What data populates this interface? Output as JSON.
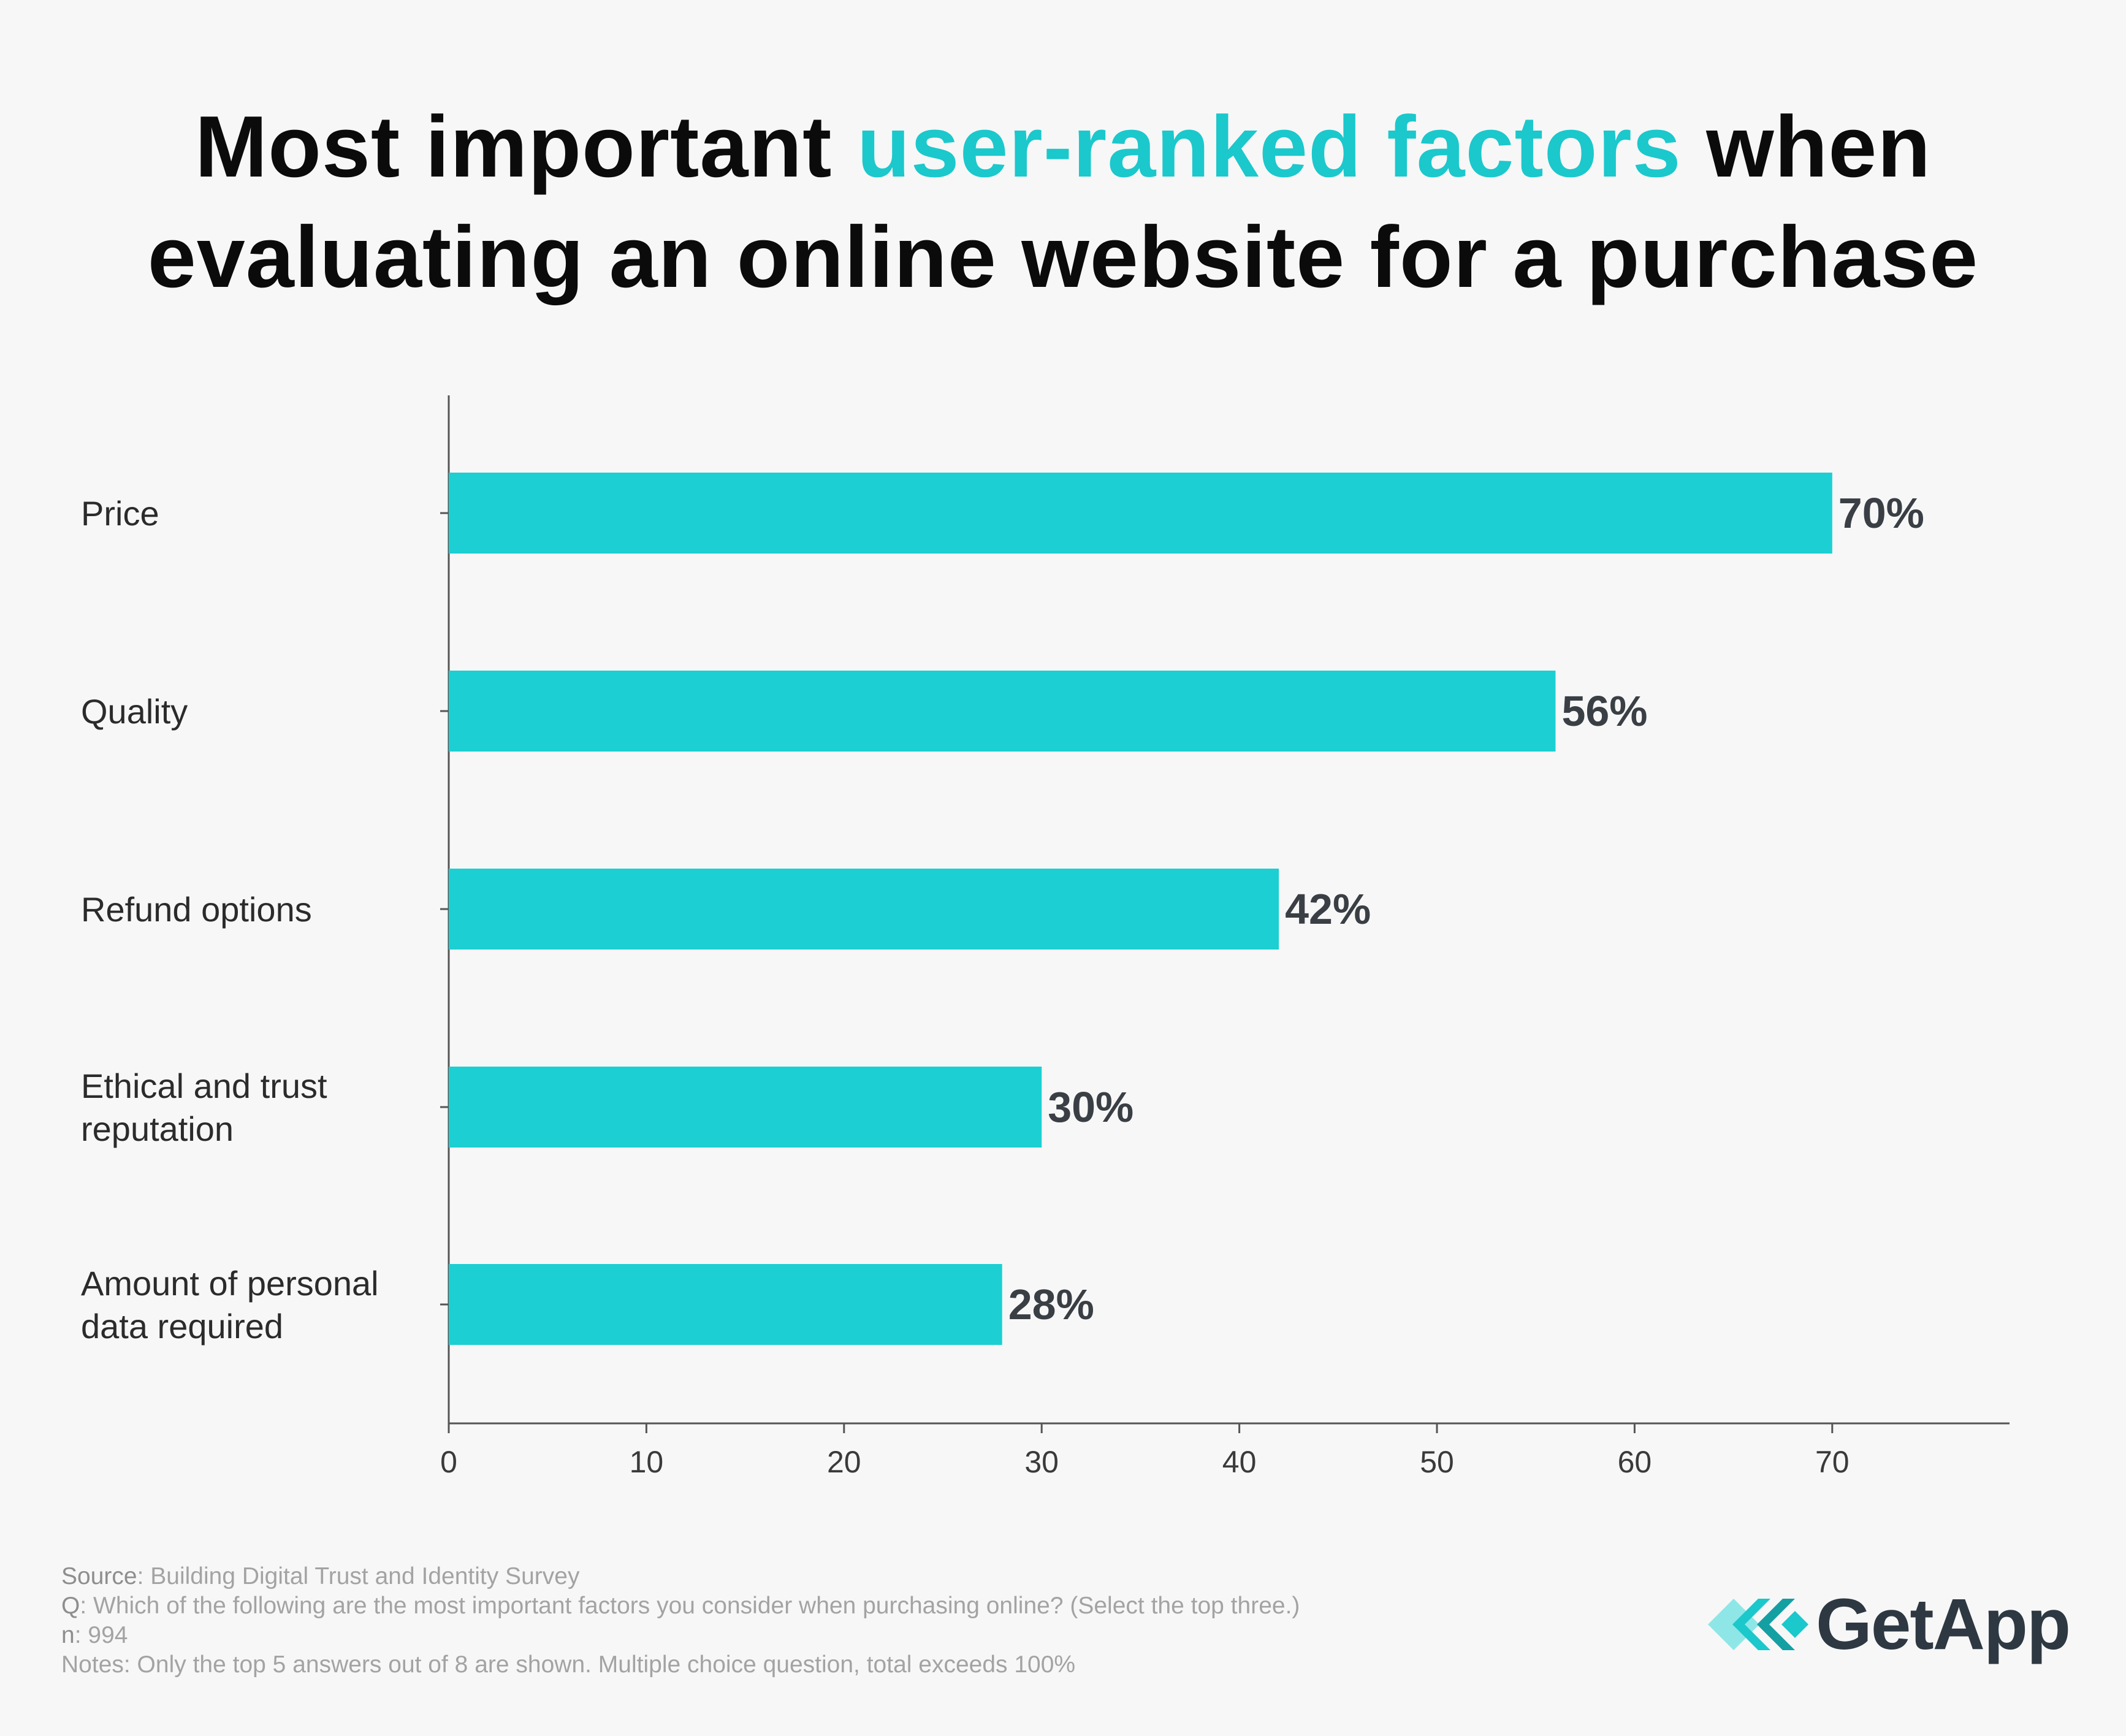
{
  "title": {
    "part1": "Most important ",
    "accent": "user-ranked factors",
    "part2": " when",
    "line2": "evaluating an online website for a purchase"
  },
  "colors": {
    "bar": "#1ccfd2",
    "accent": "#1bc8cc",
    "axis": "#555555",
    "text": "#2b2b2b",
    "label": "#3a3f45",
    "logo": "#2d3842"
  },
  "chart_data": {
    "type": "bar",
    "orientation": "horizontal",
    "categories": [
      [
        "Price"
      ],
      [
        "Quality"
      ],
      [
        "Refund options"
      ],
      [
        "Ethical and trust",
        "reputation"
      ],
      [
        "Amount of personal",
        "data required"
      ]
    ],
    "values": [
      70,
      56,
      42,
      30,
      28
    ],
    "value_labels": [
      "70%",
      "56%",
      "42%",
      "30%",
      "28%"
    ],
    "x_ticks": [
      0,
      10,
      20,
      30,
      40,
      50,
      60,
      70
    ],
    "xlim": [
      0,
      79
    ],
    "grid": false,
    "legend": "none"
  },
  "footer": {
    "source_key": "Source",
    "source_val": ": Building Digital Trust and Identity Survey",
    "q_key": "Q",
    "q_val": ": Which of the following are the most important factors you consider when purchasing online? (Select the top three.)",
    "n_key": "n",
    "n_val": ": 994",
    "notes": "Notes: Only the top 5 answers out of 8 are shown. Multiple choice question, total exceeds 100%"
  },
  "logo": {
    "text": "GetApp",
    "icon": "getapp-chevrons-icon"
  }
}
